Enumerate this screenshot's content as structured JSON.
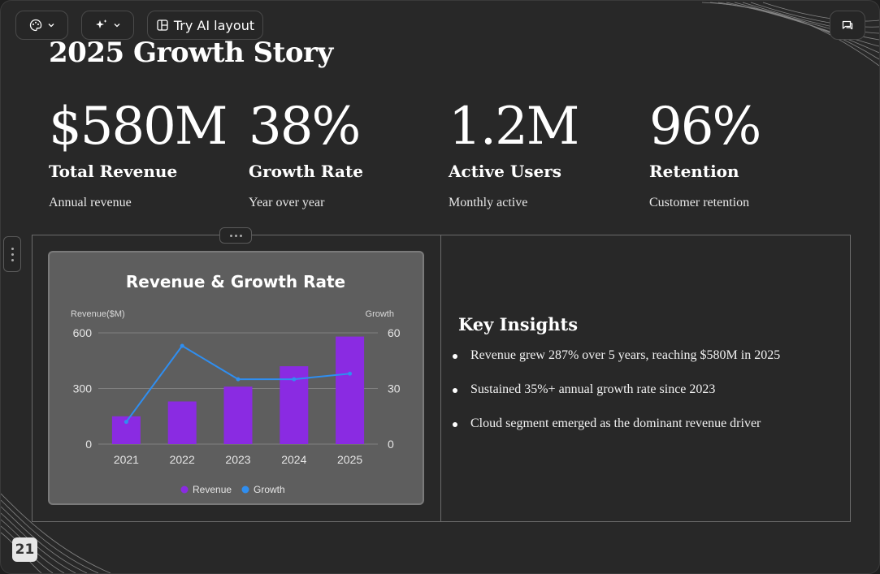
{
  "toolbar": {
    "theme_icon": "palette-icon",
    "ai_icon": "sparkles-icon",
    "layout_icon": "layout-icon",
    "try_ai_label": "Try AI layout",
    "comment_icon": "comment-icon"
  },
  "slide": {
    "title": "2025 Growth Story",
    "stats": [
      {
        "value": "$580M",
        "label": "Total Revenue",
        "sub": "Annual revenue"
      },
      {
        "value": "38%",
        "label": "Growth Rate",
        "sub": "Year over year"
      },
      {
        "value": "1.2M",
        "label": "Active Users",
        "sub": "Monthly active"
      },
      {
        "value": "96%",
        "label": "Retention",
        "sub": "Customer retention"
      }
    ],
    "insights": {
      "heading": "Key Insights",
      "items": [
        "Revenue grew 287% over 5 years, reaching $580M in 2025",
        "Sustained 35%+ annual growth rate since 2023",
        "Cloud segment emerged as the dominant revenue driver"
      ]
    },
    "page_number": "21"
  },
  "colors": {
    "background": "#282828",
    "card": "#5e5e5e",
    "revenue": "#8a2be2",
    "growth": "#2f8ef0"
  },
  "chart_data": {
    "type": "bar",
    "title": "Revenue & Growth Rate",
    "categories": [
      "2021",
      "2022",
      "2023",
      "2024",
      "2025"
    ],
    "y_left_label": "Revenue($M)",
    "y_right_label": "Growth",
    "ylim_left": [
      0,
      600
    ],
    "ylim_right": [
      0,
      60
    ],
    "yticks_left": [
      0,
      300,
      600
    ],
    "yticks_right": [
      0,
      30,
      60
    ],
    "series": [
      {
        "name": "Revenue",
        "type": "bar",
        "axis": "left",
        "values": [
          150,
          230,
          310,
          420,
          580
        ]
      },
      {
        "name": "Growth",
        "type": "line",
        "axis": "right",
        "values": [
          12,
          53,
          35,
          35,
          38
        ]
      }
    ],
    "legend": "bottom",
    "grid": true
  }
}
